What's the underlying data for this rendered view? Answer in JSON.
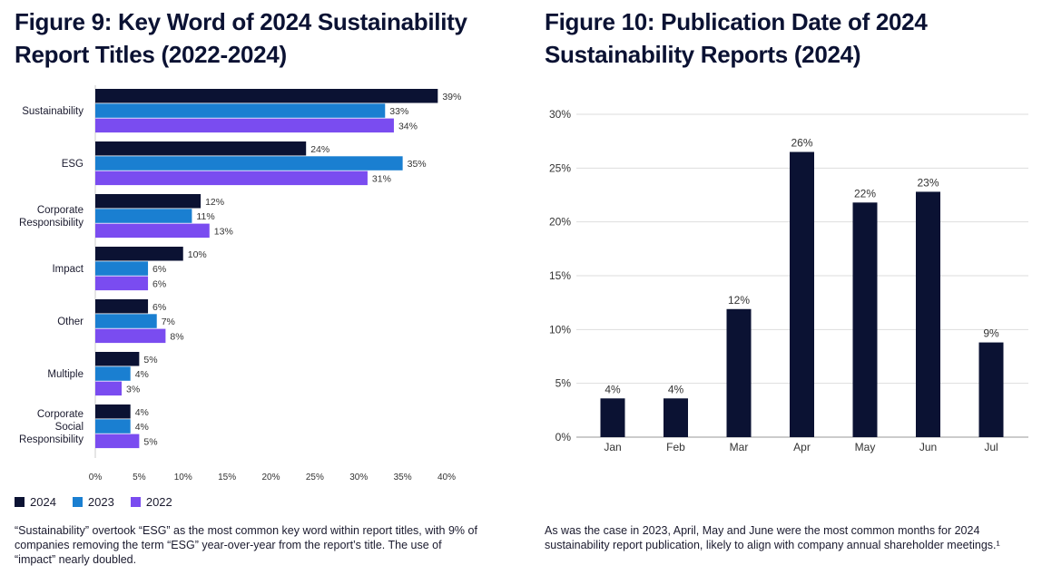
{
  "figure9": {
    "title": "Figure 9: Key Word of 2024 Sustainability Report Titles (2022-2024)",
    "caption": "“Sustainability” overtook “ESG” as the most common key word within report titles, with 9% of companies removing the term “ESG” year-over-year from the report’s title. The use of “impact” nearly doubled.",
    "legend": [
      {
        "label": "2024",
        "color": "#0b1233"
      },
      {
        "label": "2023",
        "color": "#1a7fd1"
      },
      {
        "label": "2022",
        "color": "#7a4cf0"
      }
    ]
  },
  "figure10": {
    "title": "Figure 10: Publication Date of 2024 Sustainability Reports (2024)",
    "caption": "As was the case in 2023, April, May and June were the most common months for 2024 sustainability report publication, likely to align with company annual shareholder meetings.¹"
  },
  "chart_data": [
    {
      "type": "bar",
      "orientation": "horizontal",
      "title": "Figure 9: Key Word of 2024 Sustainability Report Titles (2022-2024)",
      "categories": [
        "Sustainability",
        "ESG",
        "Corporate Responsibility",
        "Impact",
        "Other",
        "Multiple",
        "Corporate Social Responsibility"
      ],
      "category_lines": [
        [
          "Sustainability"
        ],
        [
          "ESG"
        ],
        [
          "Corporate",
          "Responsibility"
        ],
        [
          "Impact"
        ],
        [
          "Other"
        ],
        [
          "Multiple"
        ],
        [
          "Corporate",
          "Social",
          "Responsibility"
        ]
      ],
      "series": [
        {
          "name": "2024",
          "color": "#0b1233",
          "values": [
            39,
            24,
            12,
            10,
            6,
            5,
            4
          ]
        },
        {
          "name": "2023",
          "color": "#1a7fd1",
          "values": [
            33,
            35,
            11,
            6,
            7,
            4,
            4
          ]
        },
        {
          "name": "2022",
          "color": "#7a4cf0",
          "values": [
            34,
            31,
            13,
            6,
            8,
            3,
            5
          ]
        }
      ],
      "xlim": [
        0,
        40
      ],
      "xticks": [
        "0%",
        "5%",
        "10%",
        "15%",
        "20%",
        "25%",
        "30%",
        "35%",
        "40%"
      ],
      "value_suffix": "%",
      "grid": false,
      "legend": "bottom-left"
    },
    {
      "type": "bar",
      "orientation": "vertical",
      "title": "Figure 10: Publication Date of 2024 Sustainability Reports (2024)",
      "categories": [
        "Jan",
        "Feb",
        "Mar",
        "Apr",
        "May",
        "Jun",
        "Jul"
      ],
      "values": [
        3.6,
        3.6,
        11.9,
        26.5,
        21.8,
        22.8,
        8.8
      ],
      "value_labels": [
        "4%",
        "4%",
        "12%",
        "26%",
        "22%",
        "23%",
        "9%"
      ],
      "color": "#0b1233",
      "ylim": [
        0,
        30
      ],
      "yticks": [
        "0%",
        "5%",
        "10%",
        "15%",
        "20%",
        "25%",
        "30%"
      ],
      "grid": true
    }
  ]
}
